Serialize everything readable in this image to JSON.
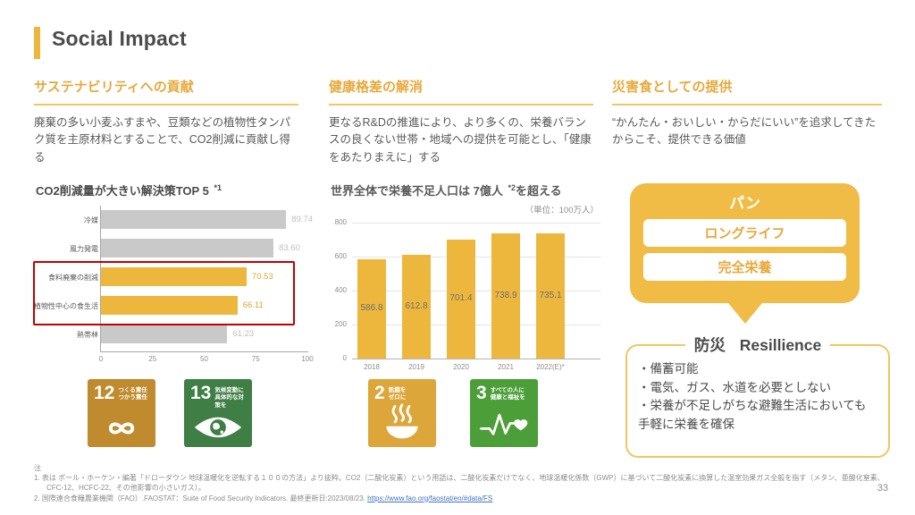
{
  "slide": {
    "title": "Social Impact",
    "page_number": "33"
  },
  "colors": {
    "accent_yellow": "#EDB73E",
    "heading_yellow": "#E7A93C",
    "underline_yellow": "#F0C75E",
    "bubble_yellow": "#F0BC46",
    "muted_gray_bar": "#C9C9C9",
    "highlight_red": "#C00000",
    "link_blue": "#4472C4"
  },
  "columns": [
    {
      "heading": "サステナビリティへの貢献",
      "body": "廃棄の多い小麦ふすまや、豆類などの植物性タンパク質を主原材料とすることで、CO2削減に貢献し得る"
    },
    {
      "heading": "健康格差の解消",
      "body": "更なるR&Dの推進により、より多くの、栄養バランスの良くない世帯・地域への提供を可能とし、「健康をあたりまえに」する"
    },
    {
      "heading": "災害食としての提供",
      "body": "“かんたん・おいしい・からだにいい”を追求してきたからこそ、提供できる価値"
    }
  ],
  "chart_data": [
    {
      "type": "bar",
      "orientation": "horizontal",
      "title": "CO2削減量が大きい解決策TOP 5 ",
      "title_note": "*1",
      "categories": [
        "冷媒",
        "風力発電",
        "食料廃棄の削減",
        "植物性中心の食生活",
        "熱帯林"
      ],
      "values": [
        89.74,
        83.6,
        70.53,
        66.11,
        61.23
      ],
      "value_labels": [
        "89.74",
        "83.60",
        "70.53",
        "66.11",
        "61.23"
      ],
      "highlighted": [
        false,
        false,
        true,
        true,
        false
      ],
      "xlim": [
        0,
        100
      ],
      "x_ticks": [
        "0",
        "25",
        "50",
        "75",
        "100"
      ],
      "bar_color": "#EDB73E",
      "muted_bar_color": "#C9C9C9",
      "value_color_highlight": "#D9A62E",
      "value_color_muted": "#BFBFBF",
      "annotation": "highlighted rows outlined with red box"
    },
    {
      "type": "bar",
      "orientation": "vertical",
      "title": "世界全体で栄養不足人口は 7億人 ",
      "title_note": "*2",
      "title_suffix": "を超える",
      "unit_label": "（単位：100万人）",
      "categories": [
        "2018",
        "2019",
        "2020",
        "2021",
        "2022(E)*"
      ],
      "values": [
        586.8,
        612.8,
        701.4,
        738.9,
        735.1
      ],
      "value_labels": [
        "586.8",
        "612.8",
        "701.4",
        "738.9",
        "735.1"
      ],
      "ylim": [
        0,
        800
      ],
      "y_ticks": [
        "0",
        "200",
        "400",
        "600",
        "800"
      ],
      "grid": true,
      "bar_color": "#EDB73E"
    }
  ],
  "sdg_icons": [
    {
      "number": "12",
      "label": "つくる責任\nつかう責任",
      "color": "#BF8B2E",
      "symbol": "infinity-loop-icon"
    },
    {
      "number": "13",
      "label": "気候変動に\n具体的な対策を",
      "color": "#3F7E44",
      "symbol": "eye-globe-icon"
    },
    {
      "number": "2",
      "label": "飢餓を\nゼロに",
      "color": "#DDA63A",
      "symbol": "steaming-bowl-icon"
    },
    {
      "number": "3",
      "label": "すべての人に\n健康と福祉を",
      "color": "#4C9F38",
      "symbol": "ekg-heart-icon"
    }
  ],
  "callout": {
    "title": "パン",
    "items": [
      "ロングライフ",
      "完全栄養"
    ]
  },
  "resilience": {
    "title_ja": "防災",
    "title_en": "Resillience",
    "bullets": [
      "・備蓄可能",
      "・電気、ガス、水道を必要としない",
      "・栄養が不足しがちな避難生活においても手軽に栄養を確保"
    ]
  },
  "footnotes": {
    "label": "注",
    "items": [
      "1.  表は ポール・ホーケン・編著「ドローダウン 地球温暖化を逆転する１００の方法」より抜粋。CO2（二酸化炭素）という用語は、二酸化炭素だけでなく、地球温暖化係数（GWP）に基づいて二酸化炭素に換算した温室効果ガス全般を指す（メタン、亜酸化窒素、CFC-12、HCFC-22、その他影響の小さいガス）。",
      "2.  国際連合食糧農業機関（FAO）.FAOSTAT：Suite of Food Security Indicators. 最終更新日:2023/08/23. "
    ],
    "link_text": "https://www.fao.org/faostat/en/#data/FS"
  }
}
